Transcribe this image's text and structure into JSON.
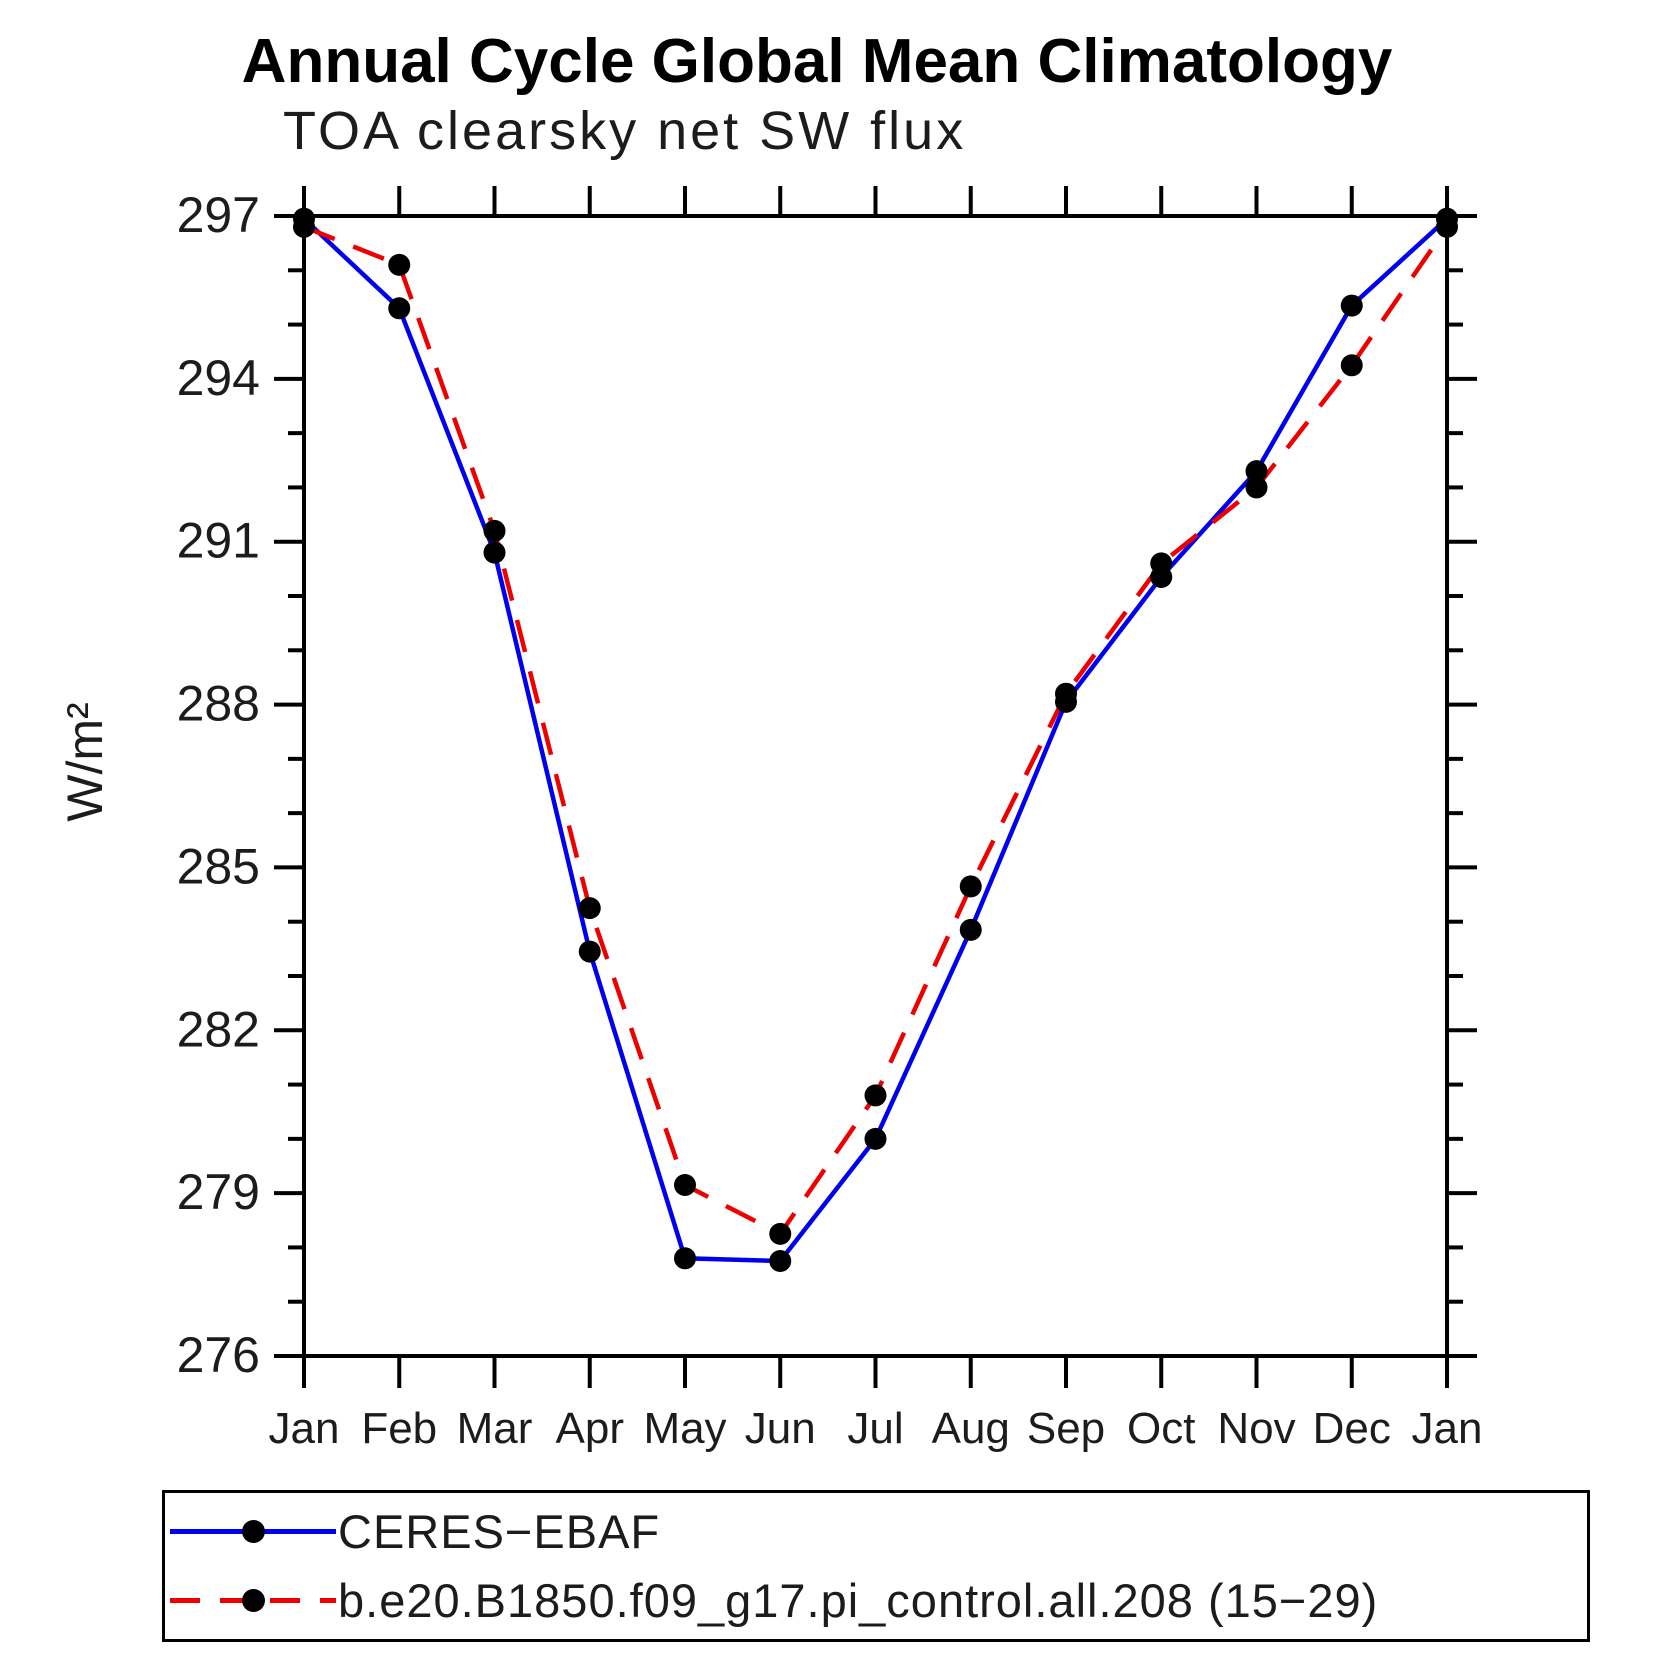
{
  "title": "Annual Cycle Global Mean Climatology",
  "subtitle": "TOA clearsky net SW flux",
  "chart_data": {
    "type": "line",
    "title": "Annual Cycle Global Mean Climatology",
    "subtitle": "TOA clearsky net SW flux",
    "xlabel": "",
    "ylabel": "W/m²",
    "x_categories": [
      "Jan",
      "Feb",
      "Mar",
      "Apr",
      "May",
      "Jun",
      "Jul",
      "Aug",
      "Sep",
      "Oct",
      "Nov",
      "Dec",
      "Jan"
    ],
    "ylim": [
      276,
      297
    ],
    "y_major_step": 3,
    "y_minor_step": 1,
    "grid": "off",
    "legend_position": "bottom",
    "marker_color": "#000000",
    "series": [
      {
        "name": "CERES−EBAF",
        "color": "#0000ee",
        "line_style": "solid",
        "marker": "filled-circle",
        "values": [
          296.95,
          295.3,
          290.8,
          283.45,
          277.8,
          277.75,
          280.0,
          283.85,
          288.05,
          290.35,
          292.3,
          295.35,
          296.95
        ]
      },
      {
        "name": "b.e20.B1850.f09_g17.pi_control.all.208 (15−29)",
        "color": "#ee0000",
        "line_style": "dashed",
        "marker": "filled-circle",
        "values": [
          296.8,
          296.1,
          291.2,
          284.25,
          279.15,
          278.25,
          280.8,
          284.65,
          288.2,
          290.6,
          292.0,
          294.25,
          296.8
        ]
      }
    ]
  }
}
